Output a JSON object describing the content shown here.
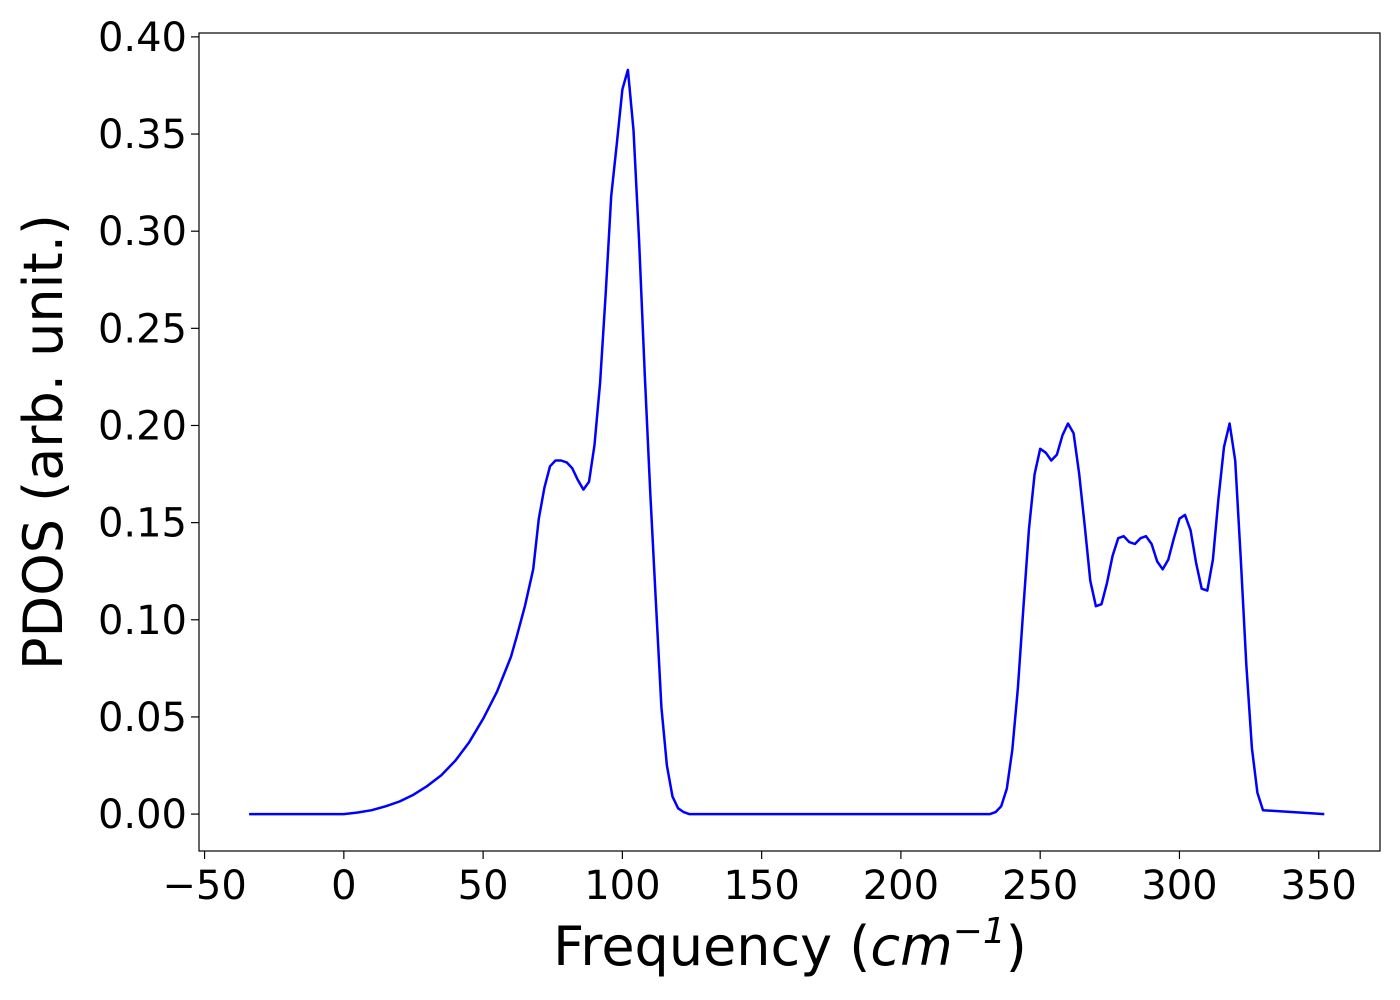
{
  "chart_data": {
    "type": "line",
    "title": "",
    "xlabel": "Frequency",
    "xlabel_unit": "cm",
    "xlabel_unit_exp": "−1",
    "ylabel": "PDOS (arb. unit.)",
    "xlim": [
      -52,
      372
    ],
    "ylim": [
      -0.019,
      0.402
    ],
    "xticks": [
      -50,
      0,
      50,
      100,
      150,
      200,
      250,
      300,
      350
    ],
    "xtick_labels": [
      "−50",
      "0",
      "50",
      "100",
      "150",
      "200",
      "250",
      "300",
      "350"
    ],
    "yticks": [
      0.0,
      0.05,
      0.1,
      0.15,
      0.2,
      0.25,
      0.3,
      0.35,
      0.4
    ],
    "ytick_labels": [
      "0.00",
      "0.05",
      "0.10",
      "0.15",
      "0.20",
      "0.25",
      "0.30",
      "0.35",
      "0.40"
    ],
    "grid": false,
    "line_color": "#0000ff",
    "series": [
      {
        "x": [
          -34,
          -20,
          -10,
          0,
          5,
          10,
          15,
          20,
          25,
          30,
          35,
          40,
          45,
          50,
          55,
          60,
          62,
          65,
          68,
          70,
          72,
          74,
          76,
          78,
          80,
          82,
          84,
          86,
          88,
          90,
          92,
          94,
          96,
          98,
          100,
          102,
          104,
          106,
          108,
          110,
          112,
          114,
          116,
          118,
          120,
          122,
          124,
          126,
          130,
          150,
          200,
          232,
          234,
          236,
          238,
          240,
          242,
          244,
          246,
          248,
          250,
          252,
          254,
          256,
          258,
          260,
          262,
          264,
          266,
          268,
          270,
          272,
          274,
          276,
          278,
          280,
          282,
          284,
          286,
          288,
          290,
          292,
          294,
          296,
          298,
          300,
          302,
          304,
          306,
          308,
          310,
          312,
          314,
          316,
          318,
          320,
          322,
          324,
          326,
          328,
          330,
          352
        ],
        "y": [
          0.0,
          0.0,
          0.0,
          0.0,
          0.0008,
          0.002,
          0.004,
          0.0065,
          0.01,
          0.0145,
          0.02,
          0.0275,
          0.037,
          0.049,
          0.063,
          0.081,
          0.091,
          0.107,
          0.126,
          0.152,
          0.168,
          0.179,
          0.182,
          0.182,
          0.181,
          0.178,
          0.172,
          0.167,
          0.171,
          0.19,
          0.222,
          0.268,
          0.318,
          0.345,
          0.373,
          0.383,
          0.352,
          0.295,
          0.227,
          0.166,
          0.11,
          0.055,
          0.025,
          0.009,
          0.003,
          0.001,
          0.0,
          0.0,
          0.0,
          0.0,
          0.0,
          0.0,
          0.001,
          0.004,
          0.013,
          0.033,
          0.065,
          0.107,
          0.147,
          0.175,
          0.188,
          0.186,
          0.182,
          0.185,
          0.195,
          0.201,
          0.196,
          0.175,
          0.148,
          0.12,
          0.107,
          0.108,
          0.119,
          0.133,
          0.142,
          0.143,
          0.14,
          0.139,
          0.142,
          0.143,
          0.139,
          0.13,
          0.126,
          0.131,
          0.142,
          0.152,
          0.154,
          0.146,
          0.129,
          0.116,
          0.115,
          0.131,
          0.162,
          0.189,
          0.201,
          0.182,
          0.132,
          0.077,
          0.034,
          0.011,
          0.002,
          0.0
        ]
      }
    ]
  }
}
